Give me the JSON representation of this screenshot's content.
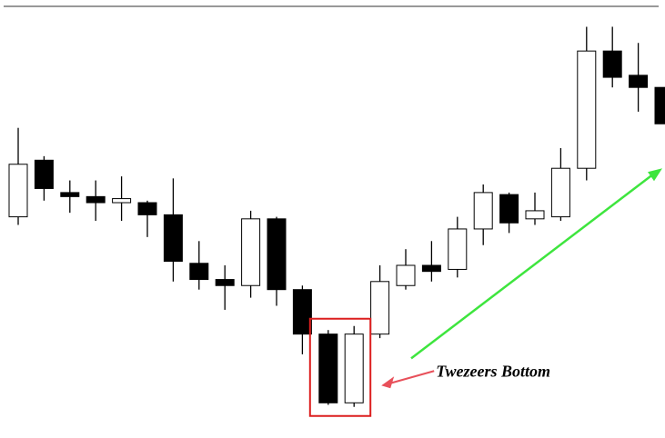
{
  "chart_data": {
    "type": "candlestick",
    "title": "",
    "xlabel": "",
    "ylabel": "",
    "grid": false,
    "ylim": [
      0,
      100
    ],
    "candles": [
      {
        "open": 52,
        "close": 65,
        "high": 74,
        "low": 50,
        "direction": "up"
      },
      {
        "open": 66,
        "close": 59,
        "high": 67,
        "low": 56,
        "direction": "down"
      },
      {
        "open": 58,
        "close": 57,
        "high": 61,
        "low": 53,
        "direction": "down"
      },
      {
        "open": 57,
        "close": 55.5,
        "high": 61,
        "low": 51,
        "direction": "down"
      },
      {
        "open": 55.5,
        "close": 56.5,
        "high": 62,
        "low": 51,
        "direction": "up"
      },
      {
        "open": 55.5,
        "close": 52.5,
        "high": 56,
        "low": 47,
        "direction": "down"
      },
      {
        "open": 52.5,
        "close": 41,
        "high": 61.5,
        "low": 36,
        "direction": "down"
      },
      {
        "open": 40.5,
        "close": 36.5,
        "high": 46,
        "low": 34,
        "direction": "down"
      },
      {
        "open": 36.5,
        "close": 35,
        "high": 40,
        "low": 29,
        "direction": "down"
      },
      {
        "open": 35,
        "close": 51.5,
        "high": 53.5,
        "low": 32,
        "direction": "up"
      },
      {
        "open": 51.5,
        "close": 34,
        "high": 52,
        "low": 30,
        "direction": "down"
      },
      {
        "open": 34,
        "close": 23,
        "high": 35,
        "low": 18,
        "direction": "down"
      },
      {
        "open": 23,
        "close": 6,
        "high": 24,
        "low": 5.5,
        "direction": "down"
      },
      {
        "open": 6,
        "close": 23,
        "high": 25,
        "low": 5,
        "direction": "up"
      },
      {
        "open": 23,
        "close": 36,
        "high": 40,
        "low": 22,
        "direction": "up"
      },
      {
        "open": 35,
        "close": 40,
        "high": 44,
        "low": 34,
        "direction": "up"
      },
      {
        "open": 40,
        "close": 38.5,
        "high": 46,
        "low": 36,
        "direction": "down"
      },
      {
        "open": 39,
        "close": 49,
        "high": 52,
        "low": 37,
        "direction": "up"
      },
      {
        "open": 49,
        "close": 58,
        "high": 60,
        "low": 45,
        "direction": "up"
      },
      {
        "open": 57.5,
        "close": 50.5,
        "high": 58,
        "low": 48,
        "direction": "down"
      },
      {
        "open": 51.5,
        "close": 53.5,
        "high": 58,
        "low": 50,
        "direction": "up"
      },
      {
        "open": 52,
        "close": 64,
        "high": 69,
        "low": 51,
        "direction": "up"
      },
      {
        "open": 64,
        "close": 93,
        "high": 99,
        "low": 61,
        "direction": "up"
      },
      {
        "open": 93,
        "close": 86.5,
        "high": 99,
        "low": 84,
        "direction": "down"
      },
      {
        "open": 87,
        "close": 84,
        "high": 95,
        "low": 78,
        "direction": "down"
      },
      {
        "open": 84,
        "close": 75,
        "high": 84,
        "low": 75,
        "direction": "down"
      }
    ],
    "colors": {
      "up_fill": "#ffffff",
      "down_fill": "#000000",
      "outline": "#000000",
      "highlight_box": "#dc1e1e",
      "annotation_arrow": "#e8505a",
      "trend_arrow": "#3ee53e",
      "top_rule": "#333333"
    },
    "annotations": [
      {
        "type": "highlight-box",
        "candles": [
          12,
          13
        ]
      },
      {
        "type": "text-callout",
        "text": "Twezeers Bottom",
        "target": "highlight-box"
      },
      {
        "type": "trend-arrow",
        "direction": "up-right"
      }
    ]
  }
}
